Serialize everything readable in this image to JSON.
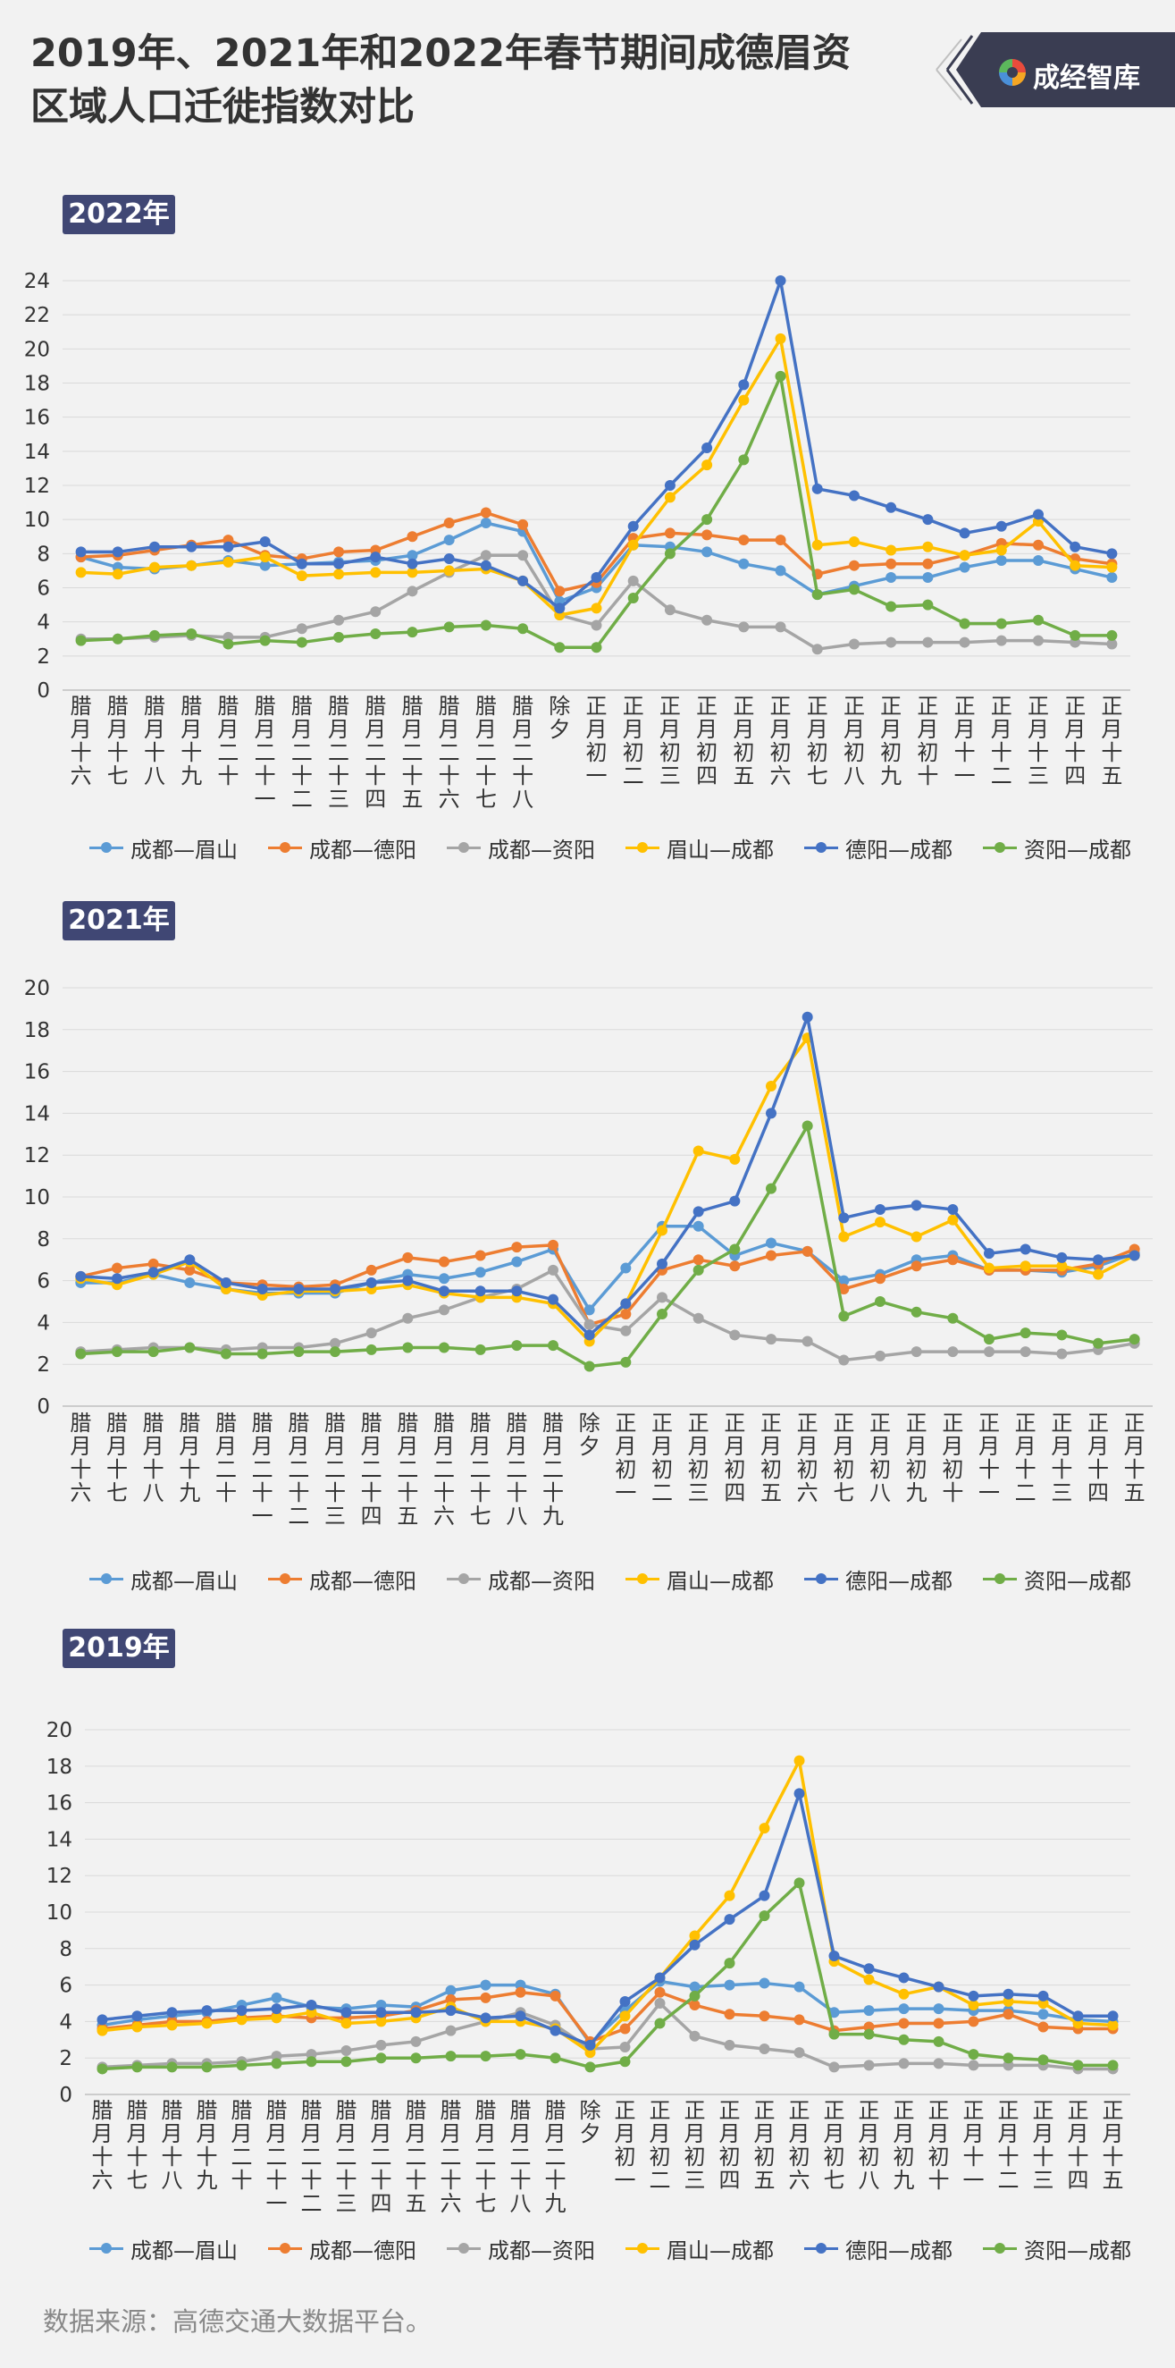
{
  "header": {
    "title_line1": "2019年、2021年和2022年春节期间成德眉资",
    "title_line2": "区域人口迁徙指数对比",
    "brand": "成经智库"
  },
  "source": "数据来源：高德交通大数据平台。",
  "legend_labels": [
    "成都—眉山",
    "成都—德阳",
    "成都—资阳",
    "眉山—成都",
    "德阳—成都",
    "资阳—成都"
  ],
  "chart_data": [
    {
      "type": "line",
      "title": "2022年",
      "ylim": [
        0,
        24
      ],
      "yticks": [
        0,
        2,
        4,
        6,
        8,
        10,
        12,
        14,
        16,
        18,
        20,
        22,
        24
      ],
      "categories": [
        "腊月十六",
        "腊月十七",
        "腊月十八",
        "腊月十九",
        "腊月二十",
        "腊月二十一",
        "腊月二十二",
        "腊月二十三",
        "腊月二十四",
        "腊月二十五",
        "腊月二十六",
        "腊月二十七",
        "腊月二十八",
        "除夕",
        "正月初一",
        "正月初二",
        "正月初三",
        "正月初四",
        "正月初五",
        "正月初六",
        "正月初七",
        "正月初八",
        "正月初九",
        "正月初十",
        "正月十一",
        "正月十二",
        "正月十三",
        "正月十四",
        "正月十五"
      ],
      "series": [
        {
          "name": "成都—眉山",
          "color": "#5b9bd5",
          "values": [
            7.8,
            7.2,
            7.1,
            7.3,
            7.6,
            7.3,
            7.4,
            7.5,
            7.6,
            7.9,
            8.8,
            9.8,
            9.3,
            5.2,
            6.0,
            8.5,
            8.4,
            8.1,
            7.4,
            7.0,
            5.6,
            6.1,
            6.6,
            6.6,
            7.2,
            7.6,
            7.6,
            7.1,
            6.6
          ]
        },
        {
          "name": "成都—德阳",
          "color": "#ed7d31",
          "values": [
            7.8,
            7.9,
            8.2,
            8.5,
            8.8,
            7.9,
            7.7,
            8.1,
            8.2,
            9.0,
            9.8,
            10.4,
            9.7,
            5.8,
            6.3,
            8.9,
            9.2,
            9.1,
            8.8,
            8.8,
            6.8,
            7.3,
            7.4,
            7.4,
            7.9,
            8.6,
            8.5,
            7.7,
            7.4
          ]
        },
        {
          "name": "成都—资阳",
          "color": "#a5a5a5",
          "values": [
            3.0,
            3.0,
            3.1,
            3.2,
            3.1,
            3.1,
            3.6,
            4.1,
            4.6,
            5.8,
            6.9,
            7.9,
            7.9,
            4.4,
            3.8,
            6.4,
            4.7,
            4.1,
            3.7,
            3.7,
            2.4,
            2.7,
            2.8,
            2.8,
            2.8,
            2.9,
            2.9,
            2.8,
            2.7
          ]
        },
        {
          "name": "眉山—成都",
          "color": "#ffc000",
          "values": [
            6.9,
            6.8,
            7.2,
            7.3,
            7.5,
            7.8,
            6.7,
            6.8,
            6.9,
            6.9,
            7.0,
            7.1,
            6.4,
            4.4,
            4.8,
            8.5,
            11.3,
            13.2,
            17.0,
            20.6,
            8.5,
            8.7,
            8.2,
            8.4,
            7.9,
            8.2,
            9.9,
            7.3,
            7.2
          ]
        },
        {
          "name": "德阳—成都",
          "color": "#4472c4",
          "values": [
            8.1,
            8.1,
            8.4,
            8.4,
            8.4,
            8.7,
            7.4,
            7.4,
            7.8,
            7.4,
            7.7,
            7.3,
            6.4,
            4.8,
            6.6,
            9.6,
            12.0,
            14.2,
            17.9,
            24.0,
            11.8,
            11.4,
            10.7,
            10.0,
            9.2,
            9.6,
            10.3,
            8.4,
            8.0
          ]
        },
        {
          "name": "资阳—成都",
          "color": "#70ad47",
          "values": [
            2.9,
            3.0,
            3.2,
            3.3,
            2.7,
            2.9,
            2.8,
            3.1,
            3.3,
            3.4,
            3.7,
            3.8,
            3.6,
            2.5,
            2.5,
            5.4,
            8.0,
            10.0,
            13.5,
            18.4,
            5.6,
            5.9,
            4.9,
            5.0,
            3.9,
            3.9,
            4.1,
            3.2,
            3.2
          ]
        }
      ]
    },
    {
      "type": "line",
      "title": "2021年",
      "ylim": [
        0,
        20
      ],
      "yticks": [
        0,
        2,
        4,
        6,
        8,
        10,
        12,
        14,
        16,
        18,
        20
      ],
      "categories": [
        "腊月十六",
        "腊月十七",
        "腊月十八",
        "腊月十九",
        "腊月二十",
        "腊月二十一",
        "腊月二十二",
        "腊月二十三",
        "腊月二十四",
        "腊月二十五",
        "腊月二十六",
        "腊月二十七",
        "腊月二十八",
        "腊月二十九",
        "除夕",
        "正月初一",
        "正月初二",
        "正月初三",
        "正月初四",
        "正月初五",
        "正月初六",
        "正月初七",
        "正月初八",
        "正月初九",
        "正月初十",
        "正月十一",
        "正月十二",
        "正月十三",
        "正月十四",
        "正月十五"
      ],
      "series": [
        {
          "name": "成都—眉山",
          "color": "#5b9bd5",
          "values": [
            5.9,
            5.9,
            6.3,
            5.9,
            5.6,
            5.4,
            5.4,
            5.4,
            5.9,
            6.3,
            6.1,
            6.4,
            6.9,
            7.5,
            4.6,
            6.6,
            8.6,
            8.6,
            7.2,
            7.8,
            7.4,
            6.0,
            6.3,
            7.0,
            7.2,
            6.5,
            6.5,
            6.4,
            6.7,
            7.3
          ]
        },
        {
          "name": "成都—德阳",
          "color": "#ed7d31",
          "values": [
            6.2,
            6.6,
            6.8,
            6.5,
            5.9,
            5.8,
            5.7,
            5.8,
            6.5,
            7.1,
            6.9,
            7.2,
            7.6,
            7.7,
            3.9,
            4.4,
            6.5,
            7.0,
            6.7,
            7.2,
            7.4,
            5.6,
            6.1,
            6.7,
            7.0,
            6.5,
            6.5,
            6.5,
            6.8,
            7.5
          ]
        },
        {
          "name": "成都—资阳",
          "color": "#a5a5a5",
          "values": [
            2.6,
            2.7,
            2.8,
            2.8,
            2.7,
            2.8,
            2.8,
            3.0,
            3.5,
            4.2,
            4.6,
            5.2,
            5.6,
            6.5,
            3.9,
            3.6,
            5.2,
            4.2,
            3.4,
            3.2,
            3.1,
            2.2,
            2.4,
            2.6,
            2.6,
            2.6,
            2.6,
            2.5,
            2.7,
            3.0
          ]
        },
        {
          "name": "眉山—成都",
          "color": "#ffc000",
          "values": [
            6.1,
            5.8,
            6.3,
            6.9,
            5.6,
            5.3,
            5.5,
            5.5,
            5.6,
            5.8,
            5.4,
            5.2,
            5.2,
            4.9,
            3.1,
            4.9,
            8.4,
            12.2,
            11.8,
            15.3,
            17.6,
            8.1,
            8.8,
            8.1,
            8.9,
            6.6,
            6.7,
            6.7,
            6.3,
            7.2
          ]
        },
        {
          "name": "德阳—成都",
          "color": "#4472c4",
          "values": [
            6.2,
            6.1,
            6.4,
            7.0,
            5.9,
            5.6,
            5.6,
            5.6,
            5.9,
            6.0,
            5.5,
            5.5,
            5.5,
            5.1,
            3.4,
            4.9,
            6.8,
            9.3,
            9.8,
            14.0,
            18.6,
            9.0,
            9.4,
            9.6,
            9.4,
            7.3,
            7.5,
            7.1,
            7.0,
            7.2
          ]
        },
        {
          "name": "资阳—成都",
          "color": "#70ad47",
          "values": [
            2.5,
            2.6,
            2.6,
            2.8,
            2.5,
            2.5,
            2.6,
            2.6,
            2.7,
            2.8,
            2.8,
            2.7,
            2.9,
            2.9,
            1.9,
            2.1,
            4.4,
            6.5,
            7.5,
            10.4,
            13.4,
            4.3,
            5.0,
            4.5,
            4.2,
            3.2,
            3.5,
            3.4,
            3.0,
            3.2
          ]
        }
      ]
    },
    {
      "type": "line",
      "title": "2019年",
      "ylim": [
        0,
        20
      ],
      "yticks": [
        0,
        2,
        4,
        6,
        8,
        10,
        12,
        14,
        16,
        18,
        20
      ],
      "categories": [
        "腊月十六",
        "腊月十七",
        "腊月十八",
        "腊月十九",
        "腊月二十",
        "腊月二十一",
        "腊月二十二",
        "腊月二十三",
        "腊月二十四",
        "腊月二十五",
        "腊月二十六",
        "腊月二十七",
        "腊月二十八",
        "腊月二十九",
        "除夕",
        "正月初一",
        "正月初二",
        "正月初三",
        "正月初四",
        "正月初五",
        "正月初六",
        "正月初七",
        "正月初八",
        "正月初九",
        "正月初十",
        "正月十一",
        "正月十二",
        "正月十三",
        "正月十四",
        "正月十五"
      ],
      "series": [
        {
          "name": "成都—眉山",
          "color": "#5b9bd5",
          "values": [
            3.8,
            4.1,
            4.3,
            4.5,
            4.9,
            5.3,
            4.8,
            4.7,
            4.9,
            4.8,
            5.7,
            6.0,
            6.0,
            5.5,
            2.8,
            4.6,
            6.2,
            5.9,
            6.0,
            6.1,
            5.9,
            4.5,
            4.6,
            4.7,
            4.7,
            4.6,
            4.6,
            4.4,
            4.1,
            4.0
          ]
        },
        {
          "name": "成都—德阳",
          "color": "#ed7d31",
          "values": [
            3.6,
            3.8,
            4.0,
            4.0,
            4.2,
            4.3,
            4.2,
            4.2,
            4.3,
            4.6,
            5.2,
            5.3,
            5.6,
            5.4,
            2.9,
            3.6,
            5.6,
            4.9,
            4.4,
            4.3,
            4.1,
            3.5,
            3.7,
            3.9,
            3.9,
            4.0,
            4.4,
            3.7,
            3.6,
            3.6
          ]
        },
        {
          "name": "成都—资阳",
          "color": "#a5a5a5",
          "values": [
            1.5,
            1.6,
            1.7,
            1.7,
            1.8,
            2.1,
            2.2,
            2.4,
            2.7,
            2.9,
            3.5,
            4.0,
            4.5,
            3.8,
            2.5,
            2.6,
            5.0,
            3.2,
            2.7,
            2.5,
            2.3,
            1.5,
            1.6,
            1.7,
            1.7,
            1.6,
            1.6,
            1.6,
            1.4,
            1.4
          ]
        },
        {
          "name": "眉山—成都",
          "color": "#ffc000",
          "values": [
            3.5,
            3.7,
            3.8,
            3.9,
            4.1,
            4.2,
            4.5,
            3.9,
            4.0,
            4.2,
            4.8,
            4.0,
            4.0,
            3.6,
            2.3,
            4.3,
            6.4,
            8.7,
            10.9,
            14.6,
            18.3,
            7.3,
            6.3,
            5.5,
            5.9,
            4.9,
            5.1,
            5.0,
            3.9,
            3.8
          ]
        },
        {
          "name": "德阳—成都",
          "color": "#4472c4",
          "values": [
            4.1,
            4.3,
            4.5,
            4.6,
            4.6,
            4.7,
            4.9,
            4.5,
            4.5,
            4.5,
            4.6,
            4.2,
            4.3,
            3.5,
            2.7,
            5.1,
            6.4,
            8.2,
            9.6,
            10.9,
            16.5,
            7.6,
            6.9,
            6.4,
            5.9,
            5.4,
            5.5,
            5.4,
            4.3,
            4.3
          ]
        },
        {
          "name": "资阳—成都",
          "color": "#70ad47",
          "values": [
            1.4,
            1.5,
            1.5,
            1.5,
            1.6,
            1.7,
            1.8,
            1.8,
            2.0,
            2.0,
            2.1,
            2.1,
            2.2,
            2.0,
            1.5,
            1.8,
            3.9,
            5.4,
            7.2,
            9.8,
            11.6,
            3.3,
            3.3,
            3.0,
            2.9,
            2.2,
            2.0,
            1.9,
            1.6,
            1.6
          ]
        }
      ]
    }
  ]
}
